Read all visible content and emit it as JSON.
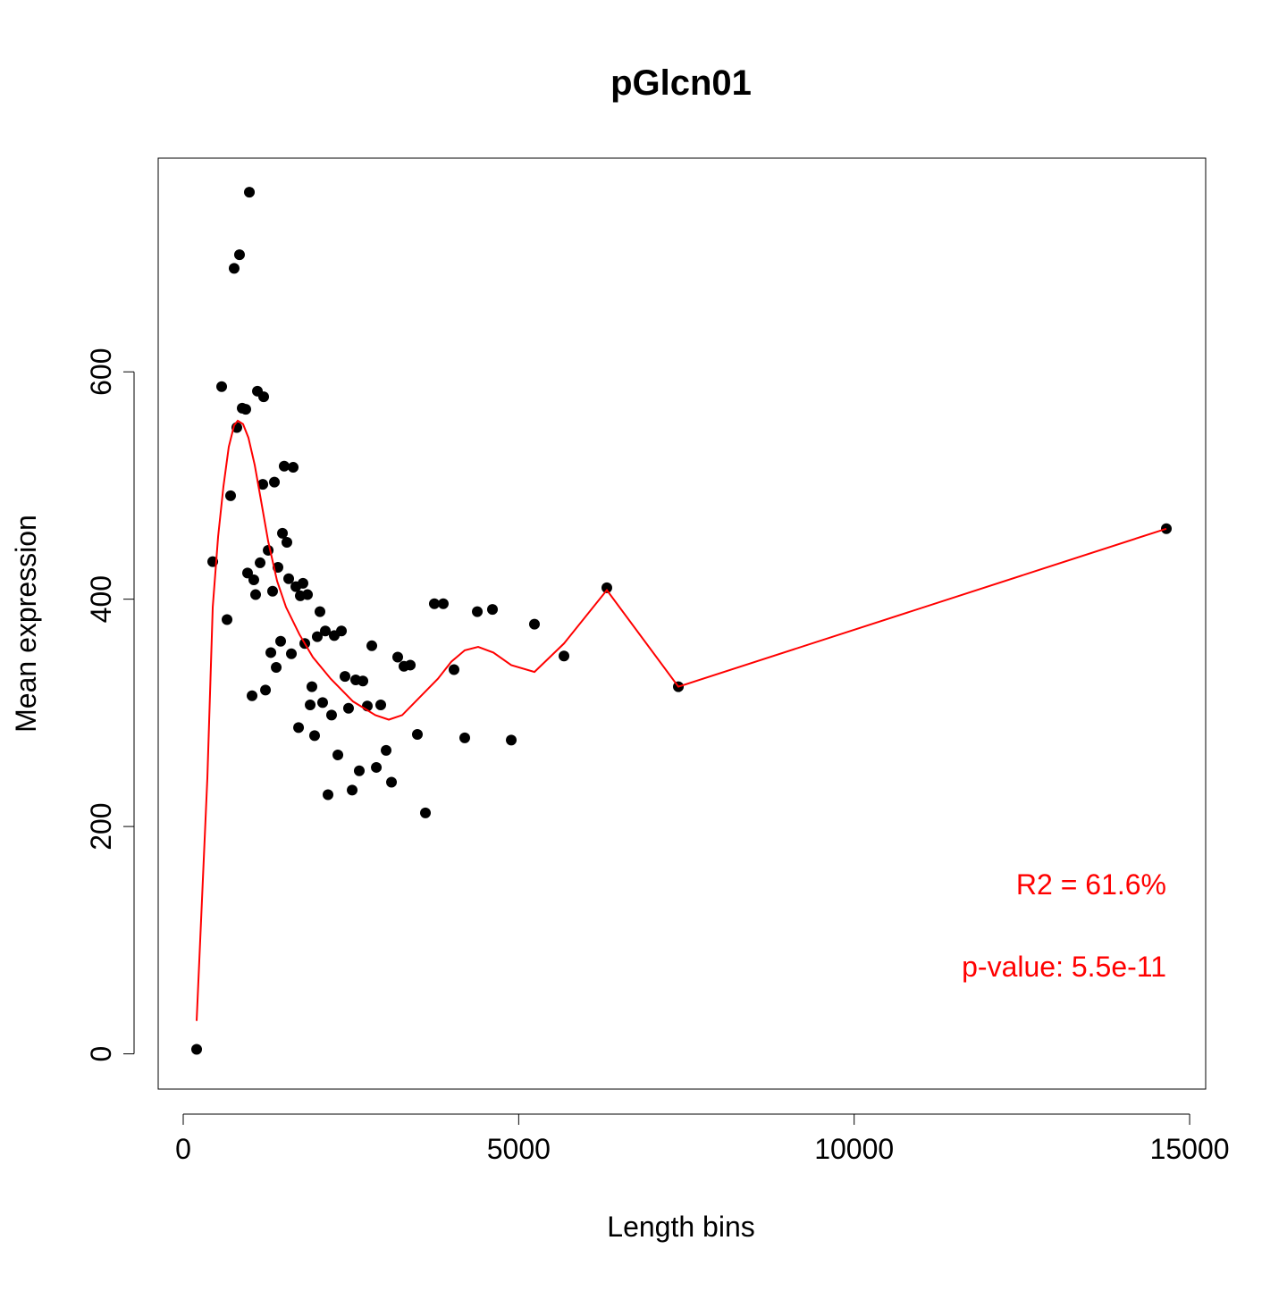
{
  "chart_data": {
    "type": "scatter",
    "title": "pGlcn01",
    "xlabel": "Length bins",
    "ylabel": "Mean expression",
    "x": [
      200,
      440,
      573,
      653,
      706,
      759,
      799,
      839,
      879,
      932,
      959,
      986,
      1026,
      1052,
      1079,
      1106,
      1146,
      1186,
      1199,
      1226,
      1266,
      1306,
      1332,
      1359,
      1386,
      1412,
      1452,
      1479,
      1505,
      1545,
      1572,
      1612,
      1639,
      1679,
      1719,
      1745,
      1785,
      1812,
      1852,
      1892,
      1918,
      1958,
      1998,
      2038,
      2078,
      2118,
      2158,
      2211,
      2251,
      2305,
      2358,
      2411,
      2464,
      2518,
      2571,
      2624,
      2678,
      2744,
      2811,
      2878,
      2944,
      3024,
      3104,
      3197,
      3290,
      3384,
      3490,
      3610,
      3743,
      3876,
      4036,
      4196,
      4383,
      4609,
      4889,
      5235,
      5675,
      6314,
      7380,
      14653
    ],
    "values": [
      4,
      433,
      587,
      382,
      491,
      691,
      551,
      703,
      568,
      567,
      423,
      758,
      315,
      417,
      404,
      583,
      432,
      501,
      578,
      320,
      443,
      353,
      407,
      503,
      340,
      428,
      363,
      458,
      517,
      450,
      418,
      352,
      516,
      411,
      287,
      403,
      414,
      361,
      404,
      307,
      323,
      280,
      367,
      389,
      309,
      372,
      228,
      298,
      368,
      263,
      372,
      332,
      304,
      232,
      329,
      249,
      328,
      306,
      359,
      252,
      307,
      267,
      239,
      349,
      341,
      342,
      281,
      212,
      396,
      396,
      338,
      278,
      389,
      391,
      276,
      378,
      350,
      410,
      323,
      462
    ],
    "color": "#000000",
    "fit": {
      "x": [
        200,
        360,
        440,
        520,
        599,
        679,
        759,
        813,
        892,
        972,
        1066,
        1159,
        1266,
        1399,
        1532,
        1732,
        1932,
        2198,
        2531,
        2864,
        3064,
        3264,
        3463,
        3796,
        3996,
        4196,
        4396,
        4623,
        4889,
        5235,
        5675,
        6314,
        7380,
        14653
      ],
      "values": [
        29,
        243,
        393,
        455,
        499,
        534,
        553,
        557,
        554,
        542,
        518,
        487,
        451,
        416,
        393,
        369,
        349,
        330,
        310,
        298,
        294,
        298,
        310,
        330,
        345,
        355,
        358,
        353,
        342,
        336,
        361,
        408,
        323,
        462
      ],
      "color": "#ff0000"
    },
    "annotations": [
      "R2 = 61.6%",
      "p-value: 5.5e-11"
    ],
    "xlim": [
      -373,
      15239
    ],
    "ylim": [
      -31,
      788
    ],
    "xticks": [
      0,
      5000,
      10000,
      15000
    ],
    "yticks": [
      0,
      200,
      400,
      600
    ]
  }
}
